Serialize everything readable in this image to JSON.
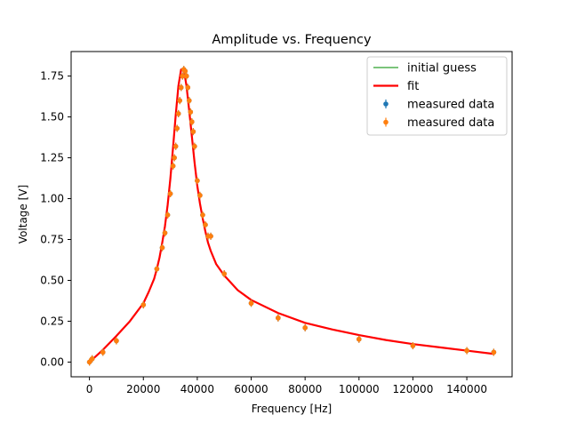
{
  "chart_data": {
    "type": "scatter",
    "title": "Amplitude vs. Frequency",
    "xlabel": "Frequency [Hz]",
    "ylabel": "Voltage [V]",
    "xlim": [
      -6800,
      156800
    ],
    "ylim": [
      -0.09,
      1.9
    ],
    "xticks": [
      0,
      20000,
      40000,
      60000,
      80000,
      100000,
      120000,
      140000
    ],
    "xtick_labels": [
      "0",
      "20000",
      "40000",
      "60000",
      "80000",
      "100000",
      "120000",
      "140000"
    ],
    "yticks": [
      0.0,
      0.25,
      0.5,
      0.75,
      1.0,
      1.25,
      1.5,
      1.75
    ],
    "ytick_labels": [
      "0.00",
      "0.25",
      "0.50",
      "0.75",
      "1.00",
      "1.25",
      "1.50",
      "1.75"
    ],
    "grid": false,
    "legend_position": "top-right",
    "series": [
      {
        "name": "initial guess",
        "kind": "line",
        "color": "#2ca02c",
        "x": [
          0,
          2000,
          5000,
          10000,
          15000,
          20000,
          22000,
          24000,
          25000,
          26000,
          27000,
          28000,
          29000,
          30000,
          31000,
          32000,
          33000,
          34000,
          35000,
          36000,
          37000,
          38000,
          39000,
          40000,
          41000,
          42000,
          43000,
          44000,
          45000,
          47000,
          50000,
          55000,
          60000,
          70000,
          80000,
          90000,
          100000,
          110000,
          120000,
          130000,
          140000,
          150000
        ],
        "y": [
          0.0,
          0.03,
          0.075,
          0.16,
          0.25,
          0.36,
          0.43,
          0.51,
          0.57,
          0.64,
          0.73,
          0.83,
          0.96,
          1.12,
          1.31,
          1.51,
          1.69,
          1.79,
          1.79,
          1.69,
          1.54,
          1.38,
          1.22,
          1.08,
          0.97,
          0.88,
          0.8,
          0.73,
          0.68,
          0.6,
          0.53,
          0.44,
          0.38,
          0.3,
          0.24,
          0.2,
          0.165,
          0.135,
          0.11,
          0.09,
          0.07,
          0.05
        ]
      },
      {
        "name": " fit",
        "kind": "line",
        "color": "#ff0000",
        "x": [
          0,
          2000,
          5000,
          10000,
          15000,
          20000,
          22000,
          24000,
          25000,
          26000,
          27000,
          28000,
          29000,
          30000,
          31000,
          32000,
          33000,
          34000,
          35000,
          36000,
          37000,
          38000,
          39000,
          40000,
          41000,
          42000,
          43000,
          44000,
          45000,
          47000,
          50000,
          55000,
          60000,
          70000,
          80000,
          90000,
          100000,
          110000,
          120000,
          130000,
          140000,
          150000
        ],
        "y": [
          0.0,
          0.03,
          0.075,
          0.16,
          0.25,
          0.36,
          0.43,
          0.51,
          0.57,
          0.64,
          0.73,
          0.83,
          0.96,
          1.12,
          1.31,
          1.51,
          1.69,
          1.79,
          1.79,
          1.69,
          1.54,
          1.38,
          1.22,
          1.08,
          0.97,
          0.88,
          0.8,
          0.73,
          0.68,
          0.6,
          0.53,
          0.44,
          0.38,
          0.3,
          0.24,
          0.2,
          0.165,
          0.135,
          0.11,
          0.09,
          0.07,
          0.05
        ]
      },
      {
        "name": "measured data",
        "kind": "errorbar",
        "color": "#1f77b4",
        "x": [
          0,
          1000,
          5000,
          10000,
          20000,
          25000,
          27000,
          28000,
          29000,
          30000,
          31000,
          31500,
          32000,
          32500,
          33000,
          33500,
          34000,
          34500,
          35000,
          35500,
          36000,
          36500,
          37000,
          37500,
          38000,
          38500,
          39000,
          40000,
          41000,
          42000,
          43000,
          44000,
          45000,
          50000,
          60000,
          70000,
          80000,
          100000,
          120000,
          140000,
          150000
        ],
        "y": [
          0.0,
          0.02,
          0.06,
          0.13,
          0.35,
          0.57,
          0.7,
          0.79,
          0.9,
          1.03,
          1.2,
          1.25,
          1.32,
          1.43,
          1.52,
          1.6,
          1.68,
          1.75,
          1.79,
          1.78,
          1.75,
          1.68,
          1.6,
          1.53,
          1.47,
          1.41,
          1.32,
          1.11,
          1.02,
          0.9,
          0.84,
          0.77,
          0.77,
          0.54,
          0.36,
          0.27,
          0.21,
          0.14,
          0.1,
          0.07,
          0.06
        ]
      },
      {
        "name": "measured data",
        "kind": "errorbar",
        "color": "#ff7f0e",
        "x": [
          0,
          1000,
          5000,
          10000,
          20000,
          25000,
          27000,
          28000,
          29000,
          30000,
          31000,
          31500,
          32000,
          32500,
          33000,
          33500,
          34000,
          34500,
          35000,
          35500,
          36000,
          36500,
          37000,
          37500,
          38000,
          38500,
          39000,
          40000,
          41000,
          42000,
          43000,
          44000,
          45000,
          50000,
          60000,
          70000,
          80000,
          100000,
          120000,
          140000,
          150000
        ],
        "y": [
          0.0,
          0.02,
          0.06,
          0.13,
          0.35,
          0.57,
          0.7,
          0.79,
          0.9,
          1.03,
          1.2,
          1.25,
          1.32,
          1.43,
          1.52,
          1.6,
          1.68,
          1.75,
          1.79,
          1.78,
          1.75,
          1.68,
          1.6,
          1.53,
          1.47,
          1.41,
          1.32,
          1.11,
          1.02,
          0.9,
          0.84,
          0.77,
          0.77,
          0.54,
          0.36,
          0.27,
          0.21,
          0.14,
          0.1,
          0.07,
          0.06
        ]
      }
    ]
  }
}
